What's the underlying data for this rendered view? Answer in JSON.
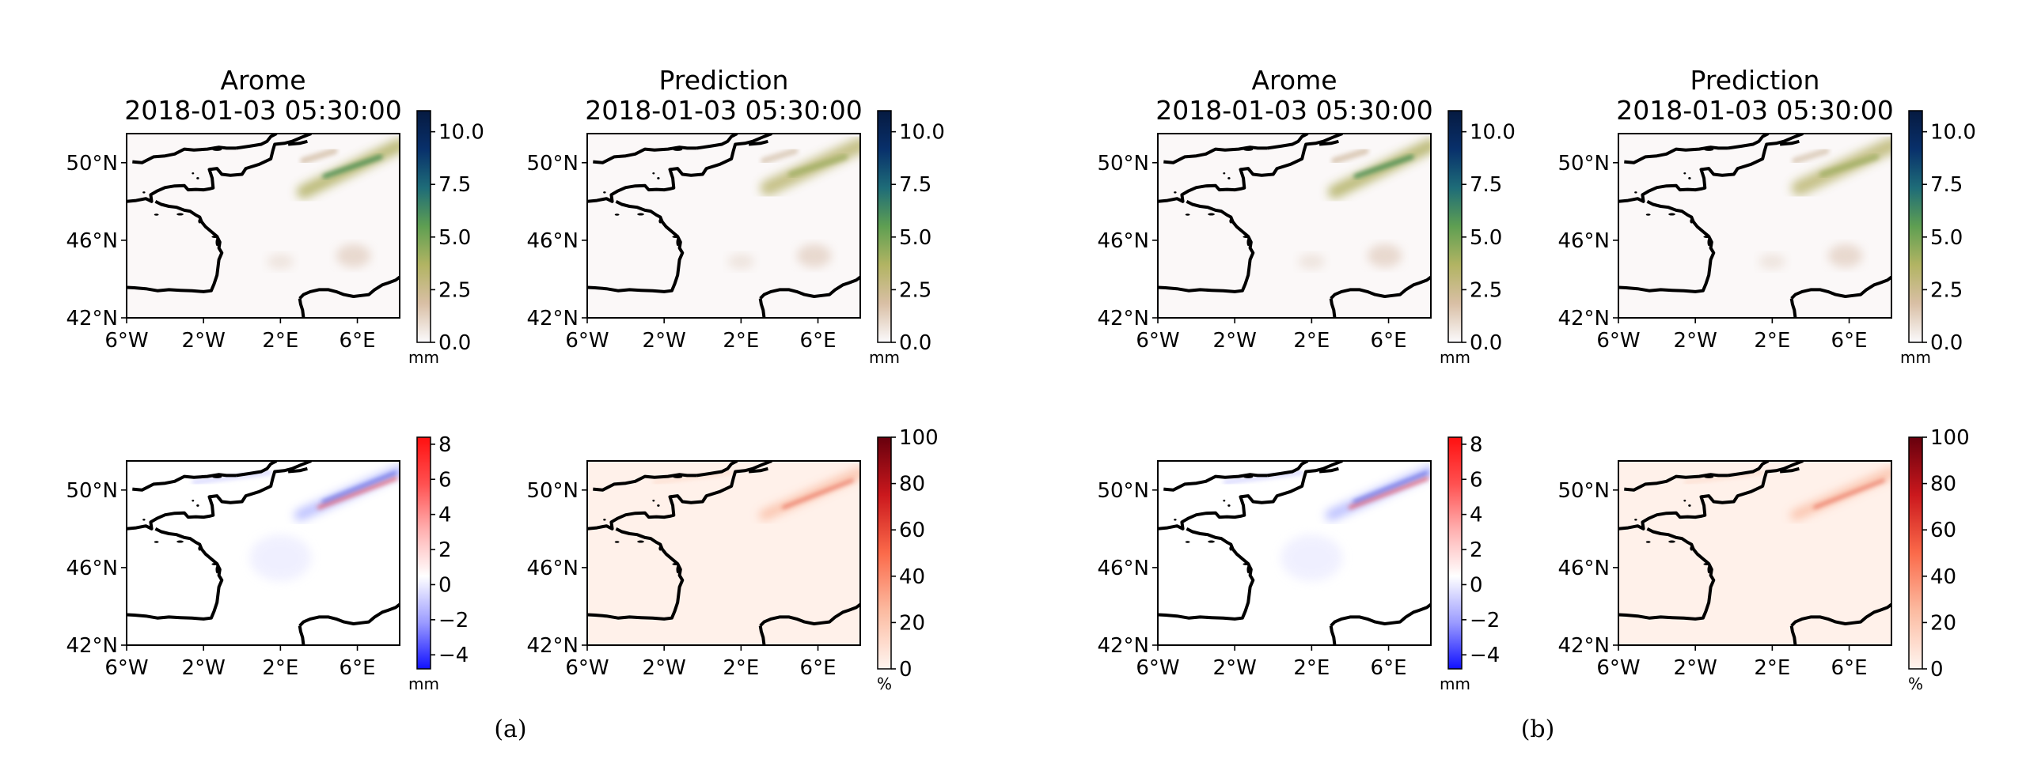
{
  "chart_data": {
    "type": "map-grid",
    "groups": [
      {
        "label": "(a)"
      },
      {
        "label": "(b)"
      }
    ],
    "panels": [
      {
        "group": 0,
        "row": 0,
        "col": 0,
        "kind": "precip",
        "field": "arome",
        "title": [
          "Arome",
          "2018-01-03 05:30:00"
        ],
        "colorbar": "precip"
      },
      {
        "group": 0,
        "row": 0,
        "col": 1,
        "kind": "precip",
        "field": "pred",
        "title": [
          "Prediction",
          "2018-01-03 05:30:00"
        ],
        "colorbar": "precip"
      },
      {
        "group": 0,
        "row": 1,
        "col": 0,
        "kind": "diff",
        "field": "diff",
        "title": [],
        "colorbar": "diff"
      },
      {
        "group": 0,
        "row": 1,
        "col": 1,
        "kind": "pct",
        "field": "pct",
        "title": [],
        "colorbar": "pct"
      },
      {
        "group": 1,
        "row": 0,
        "col": 0,
        "kind": "precip",
        "field": "arome",
        "title": [
          "Arome",
          "2018-01-03 05:30:00"
        ],
        "colorbar": "precip"
      },
      {
        "group": 1,
        "row": 0,
        "col": 1,
        "kind": "precip",
        "field": "pred",
        "title": [
          "Prediction",
          "2018-01-03 05:30:00"
        ],
        "colorbar": "precip"
      },
      {
        "group": 1,
        "row": 1,
        "col": 0,
        "kind": "diff",
        "field": "diff",
        "title": [],
        "colorbar": "diff"
      },
      {
        "group": 1,
        "row": 1,
        "col": 1,
        "kind": "pct",
        "field": "pct",
        "title": [],
        "colorbar": "pct"
      }
    ],
    "map_extent": {
      "lon": [
        -6.0,
        8.2
      ],
      "lat": [
        42.0,
        51.5
      ]
    },
    "x_ticks": [
      {
        "value": -6,
        "label": "6°W"
      },
      {
        "value": -2,
        "label": "2°W"
      },
      {
        "value": 2,
        "label": "2°E"
      },
      {
        "value": 6,
        "label": "6°E"
      }
    ],
    "y_ticks": [
      {
        "value": 42,
        "label": "42°N"
      },
      {
        "value": 46,
        "label": "46°N"
      },
      {
        "value": 50,
        "label": "50°N"
      }
    ],
    "colorbars": {
      "precip": {
        "range": [
          0,
          11.0
        ],
        "ticks": [
          {
            "v": 0,
            "label": "0.0"
          },
          {
            "v": 2.5,
            "label": "2.5"
          },
          {
            "v": 5,
            "label": "5.0"
          },
          {
            "v": 7.5,
            "label": "7.5"
          },
          {
            "v": 10,
            "label": "10.0"
          }
        ],
        "unit": "mm",
        "colors": [
          "#fbfafc",
          "#d9bfa5",
          "#b2b463",
          "#5f9f52",
          "#1e6c78",
          "#08306b",
          "#061a40"
        ]
      },
      "diff": {
        "range": [
          -4.8,
          8.4
        ],
        "ticks": [
          {
            "v": -4,
            "label": "−4"
          },
          {
            "v": -2,
            "label": "−2"
          },
          {
            "v": 0,
            "label": "0"
          },
          {
            "v": 2,
            "label": "2"
          },
          {
            "v": 4,
            "label": "4"
          },
          {
            "v": 6,
            "label": "6"
          },
          {
            "v": 8,
            "label": "8"
          }
        ],
        "unit": "mm",
        "colors": [
          "#1010ff",
          "#9b9bff",
          "#ffffff",
          "#ffb0b0",
          "#ff5050",
          "#ff1010"
        ]
      },
      "pct": {
        "range": [
          0,
          100
        ],
        "ticks": [
          {
            "v": 0,
            "label": "0"
          },
          {
            "v": 20,
            "label": "20"
          },
          {
            "v": 40,
            "label": "40"
          },
          {
            "v": 60,
            "label": "60"
          },
          {
            "v": 80,
            "label": "80"
          },
          {
            "v": 100,
            "label": "100"
          }
        ],
        "unit": "%",
        "colors": [
          "#fff5f0",
          "#fcbba1",
          "#fb6a4a",
          "#cb181d",
          "#67000d"
        ]
      }
    },
    "fields": {
      "arome": {
        "background": "#fbf8f8",
        "features": [
          {
            "type": "band",
            "from": [
              3.2,
              48.5
            ],
            "to": [
              8.2,
              50.9
            ],
            "width": 0.7,
            "color": "#b5b46a",
            "opacity": 0.9
          },
          {
            "type": "band",
            "from": [
              4.3,
              49.3
            ],
            "to": [
              7.2,
              50.3
            ],
            "width": 0.22,
            "color": "#3f8a4e",
            "opacity": 0.9
          },
          {
            "type": "band",
            "from": [
              3.2,
              50.1
            ],
            "to": [
              4.8,
              50.6
            ],
            "width": 0.35,
            "color": "#cfb89e",
            "opacity": 0.7
          },
          {
            "type": "blob",
            "at": [
              5.8,
              45.2
            ],
            "r": [
              0.9,
              0.6
            ],
            "color": "#dcc4b4",
            "opacity": 0.6
          },
          {
            "type": "blob",
            "at": [
              2.0,
              44.9
            ],
            "r": [
              0.7,
              0.4
            ],
            "color": "#e2d2c6",
            "opacity": 0.5
          }
        ]
      },
      "pred": {
        "background": "#fbf8f8",
        "features": [
          {
            "type": "band",
            "from": [
              3.4,
              48.7
            ],
            "to": [
              8.2,
              50.9
            ],
            "width": 0.8,
            "color": "#c0bb7c",
            "opacity": 0.9
          },
          {
            "type": "band",
            "from": [
              4.6,
              49.4
            ],
            "to": [
              7.4,
              50.3
            ],
            "width": 0.3,
            "color": "#9fae62",
            "opacity": 0.8
          },
          {
            "type": "band",
            "from": [
              3.2,
              50.1
            ],
            "to": [
              4.8,
              50.6
            ],
            "width": 0.35,
            "color": "#d3bfa8",
            "opacity": 0.7
          },
          {
            "type": "blob",
            "at": [
              5.8,
              45.2
            ],
            "r": [
              0.9,
              0.6
            ],
            "color": "#dcc4b4",
            "opacity": 0.6
          },
          {
            "type": "blob",
            "at": [
              2.0,
              44.9
            ],
            "r": [
              0.7,
              0.4
            ],
            "color": "#e2d2c6",
            "opacity": 0.5
          }
        ]
      },
      "diff": {
        "background": "#ffffff",
        "features": [
          {
            "type": "band",
            "from": [
              3.0,
              48.7
            ],
            "to": [
              8.2,
              51.0
            ],
            "width": 0.55,
            "color": "#9aa0ff",
            "opacity": 0.7
          },
          {
            "type": "band",
            "from": [
              4.0,
              49.1
            ],
            "to": [
              8.0,
              50.6
            ],
            "width": 0.16,
            "color": "#e8505a",
            "opacity": 0.9
          },
          {
            "type": "band",
            "from": [
              4.2,
              49.4
            ],
            "to": [
              8.0,
              50.9
            ],
            "width": 0.12,
            "color": "#3c46d8",
            "opacity": 0.9
          },
          {
            "type": "band",
            "from": [
              -2.5,
              50.4
            ],
            "to": [
              1.5,
              50.9
            ],
            "width": 0.2,
            "color": "#b8b8ff",
            "opacity": 0.6
          },
          {
            "type": "blob",
            "at": [
              2.0,
              46.5
            ],
            "r": [
              1.6,
              1.2
            ],
            "color": "#e6e6ff",
            "opacity": 0.6
          }
        ]
      },
      "pct": {
        "background": "#fff1ea",
        "features": [
          {
            "type": "band",
            "from": [
              3.2,
              48.7
            ],
            "to": [
              8.2,
              50.9
            ],
            "width": 0.5,
            "color": "#f9b59a",
            "opacity": 0.8
          },
          {
            "type": "band",
            "from": [
              4.2,
              49.1
            ],
            "to": [
              7.8,
              50.5
            ],
            "width": 0.12,
            "color": "#e3503a",
            "opacity": 0.9
          },
          {
            "type": "band",
            "from": [
              -2.5,
              50.4
            ],
            "to": [
              1.5,
              50.9
            ],
            "width": 0.15,
            "color": "#fbc9b4",
            "opacity": 0.6
          }
        ]
      }
    }
  }
}
